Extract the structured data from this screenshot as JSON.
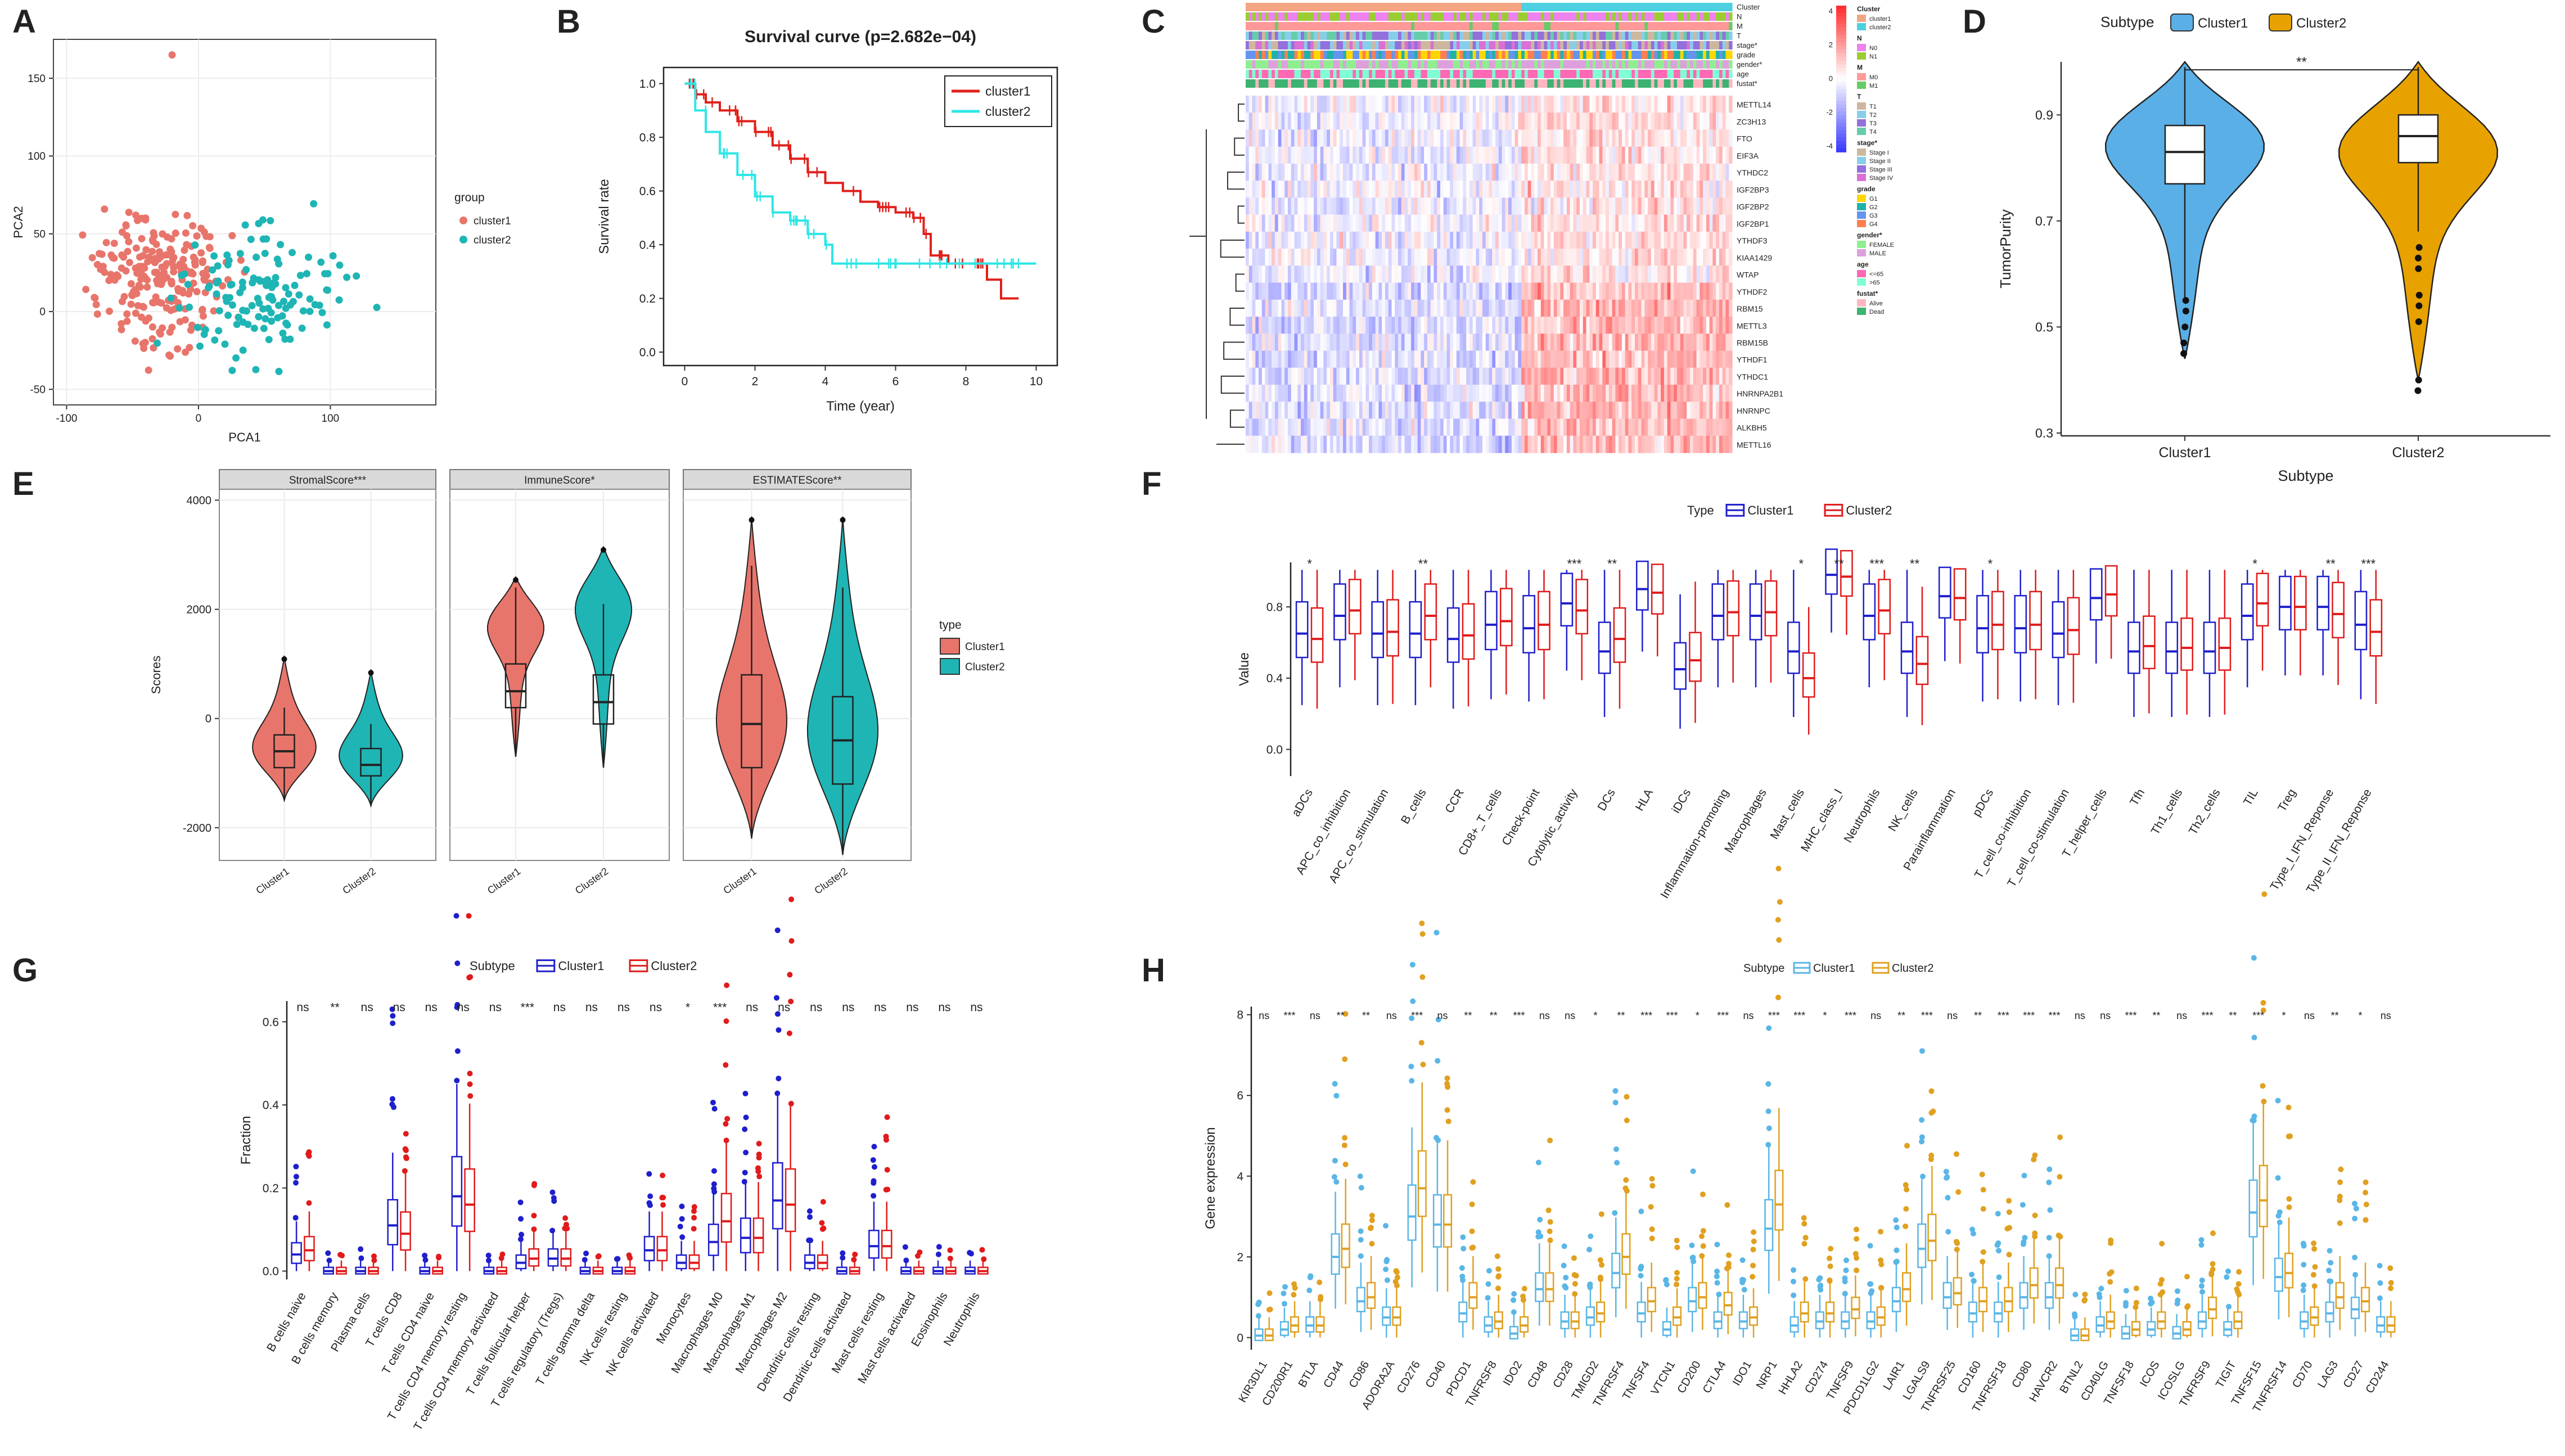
{
  "panel_letters": [
    "A",
    "B",
    "C",
    "D",
    "E",
    "F",
    "G",
    "H"
  ],
  "colors": {
    "c1_red": "#E8756B",
    "c2_teal": "#1FB5B5",
    "surv1": "#E0201B",
    "surv2": "#2EE6E6",
    "d_c1": "#5AAFE6",
    "d_c2": "#E8A200",
    "blue": "#1F1FCC",
    "red": "#E01B1B",
    "h_c1": "#5AB6E6",
    "h_c2": "#E0A020",
    "hm_low": "#3333FF",
    "hm_high": "#FF2222"
  },
  "chart_data": [
    {
      "panel": "A",
      "type": "scatter",
      "xlabel": "PCA1",
      "ylabel": "PCA2",
      "xlim": [
        -110,
        180
      ],
      "ylim": [
        -60,
        175
      ],
      "xticks": [
        -100,
        0,
        100
      ],
      "yticks": [
        -50,
        0,
        50,
        100,
        150
      ],
      "legend_title": "group",
      "legend": [
        "cluster1",
        "cluster2"
      ],
      "cluster1_center": [
        -30,
        20
      ],
      "cluster2_center": [
        50,
        10
      ],
      "n_points": [
        230,
        130
      ]
    },
    {
      "panel": "B",
      "type": "line",
      "title": "Survival curve (p=2.682e−04)",
      "xlabel": "Time (year)",
      "ylabel": "Survival rate",
      "xlim": [
        0,
        10
      ],
      "ylim": [
        0,
        1
      ],
      "xticks": [
        0,
        2,
        4,
        6,
        8,
        10
      ],
      "yticks": [
        0.0,
        0.2,
        0.4,
        0.6,
        0.8,
        1.0
      ],
      "legend": [
        "cluster1",
        "cluster2"
      ],
      "series": [
        {
          "name": "cluster1",
          "x": [
            0,
            0.3,
            0.6,
            1,
            1.5,
            2,
            2.5,
            3,
            3.5,
            4,
            4.5,
            5,
            5.5,
            6,
            6.5,
            6.8,
            7,
            7.5,
            8,
            8.6,
            9,
            9.5
          ],
          "y": [
            1,
            0.96,
            0.93,
            0.9,
            0.86,
            0.82,
            0.77,
            0.72,
            0.67,
            0.63,
            0.6,
            0.56,
            0.54,
            0.52,
            0.5,
            0.44,
            0.36,
            0.33,
            0.33,
            0.27,
            0.2,
            0.2
          ]
        },
        {
          "name": "cluster2",
          "x": [
            0,
            0.3,
            0.6,
            1,
            1.5,
            2,
            2.5,
            3,
            3.5,
            4,
            4.2,
            5,
            6,
            7,
            8,
            9,
            10
          ],
          "y": [
            1,
            0.9,
            0.82,
            0.74,
            0.66,
            0.58,
            0.52,
            0.49,
            0.44,
            0.4,
            0.33,
            0.33,
            0.33,
            0.33,
            0.33,
            0.33,
            0.33
          ]
        }
      ]
    },
    {
      "panel": "C",
      "type": "heatmap",
      "rows": [
        "METTL14",
        "ZC3H13",
        "FTO",
        "EIF3A",
        "YTHDC2",
        "IGF2BP3",
        "IGF2BP2",
        "IGF2BP1",
        "YTHDF3",
        "KIAA1429",
        "WTAP",
        "YTHDF2",
        "RBM15",
        "METTL3",
        "RBM15B",
        "YTHDF1",
        "YTHDC1",
        "HNRNPA2B1",
        "HNRNPC",
        "ALKBH5",
        "METTL16"
      ],
      "annotations": [
        "Cluster",
        "N",
        "M",
        "T",
        "stage*",
        "grade",
        "gender*",
        "age",
        "fustat*"
      ],
      "scale": [
        -4,
        4
      ],
      "legend": [
        {
          "title": "Cluster",
          "items": [
            "cluster1",
            "cluster2"
          ]
        },
        {
          "title": "N",
          "items": [
            "N0",
            "N1"
          ]
        },
        {
          "title": "M",
          "items": [
            "M0",
            "M1"
          ]
        },
        {
          "title": "T",
          "items": [
            "T1",
            "T2",
            "T3",
            "T4"
          ]
        },
        {
          "title": "stage*",
          "items": [
            "Stage I",
            "Stage II",
            "Stage III",
            "Stage IV"
          ]
        },
        {
          "title": "grade",
          "items": [
            "G1",
            "G2",
            "G3",
            "G4"
          ]
        },
        {
          "title": "gender*",
          "items": [
            "FEMALE",
            "MALE"
          ]
        },
        {
          "title": "age",
          "items": [
            "<=65",
            ">65"
          ]
        },
        {
          "title": "fustat*",
          "items": [
            "Alive",
            "Dead"
          ]
        }
      ]
    },
    {
      "panel": "D",
      "type": "violin",
      "legend_title": "Subtype",
      "legend": [
        "Cluster1",
        "Cluster2"
      ],
      "categories": [
        "Cluster1",
        "Cluster2"
      ],
      "xlabel": "Subtype",
      "ylabel": "TumorPurity",
      "ylim": [
        0.3,
        1.0
      ],
      "yticks": [
        0.3,
        0.5,
        0.7,
        0.9
      ],
      "significance": "**",
      "boxes": [
        {
          "q1": 0.77,
          "med": 0.83,
          "q3": 0.88,
          "lo": 0.55,
          "hi": 0.99
        },
        {
          "q1": 0.81,
          "med": 0.86,
          "q3": 0.9,
          "lo": 0.68,
          "hi": 0.99
        }
      ]
    },
    {
      "panel": "E",
      "type": "violin",
      "facets": [
        "StromalScore***",
        "ImmuneScore*",
        "ESTIMATEScore**"
      ],
      "categories": [
        "Cluster1",
        "Cluster2"
      ],
      "ylabel": "Scores",
      "ylim": [
        -2400,
        4200
      ],
      "yticks": [
        -2000,
        0,
        2000,
        4000
      ],
      "legend_title": "type",
      "legend": [
        "Cluster1",
        "Cluster2"
      ],
      "boxes": [
        [
          {
            "q1": -900,
            "med": -600,
            "q3": -300,
            "lo": -1500,
            "hi": 200
          },
          {
            "q1": -1050,
            "med": -850,
            "q3": -550,
            "lo": -1600,
            "hi": -100
          }
        ],
        [
          {
            "q1": 200,
            "med": 500,
            "q3": 1000,
            "lo": -700,
            "hi": 2400
          },
          {
            "q1": -100,
            "med": 300,
            "q3": 800,
            "lo": -900,
            "hi": 2100
          }
        ],
        [
          {
            "q1": -900,
            "med": -100,
            "q3": 800,
            "lo": -2100,
            "hi": 2800
          },
          {
            "q1": -1200,
            "med": -400,
            "q3": 400,
            "lo": -2400,
            "hi": 2400
          }
        ]
      ]
    },
    {
      "panel": "F",
      "type": "boxplot",
      "legend_title": "Type",
      "legend": [
        "Cluster1",
        "Cluster2"
      ],
      "ylabel": "Value",
      "ylim": [
        -0.15,
        1.05
      ],
      "yticks": [
        0.0,
        0.4,
        0.8
      ],
      "categories": [
        "aDCs",
        "APC_co_inhibition",
        "APC_co_stimulation",
        "B_cells",
        "CCR",
        "CD8+_T_cells",
        "Check-point",
        "Cytolytic_activity",
        "DCs",
        "HLA",
        "iDCs",
        "Inflammation-promoting",
        "Macrophages",
        "Mast_cells",
        "MHC_class_I",
        "Neutrophils",
        "NK_cells",
        "Parainflammation",
        "pDCs",
        "T_cell_co-inhibition",
        "T_cell_co-stimulation",
        "T_helper_cells",
        "Tfh",
        "Th1_cells",
        "Th2_cells",
        "TIL",
        "Treg",
        "Type_I_IFN_Reponse",
        "Type_II_IFN_Reponse"
      ],
      "significance": [
        "*",
        "",
        "",
        "**",
        "",
        "",
        "",
        "***",
        "**",
        "",
        "",
        "",
        "",
        "*",
        "**",
        "***",
        "**",
        "",
        "*",
        "",
        "",
        "",
        "",
        "",
        "",
        "*",
        "",
        "**",
        "***"
      ],
      "medians_c1": [
        0.65,
        0.75,
        0.65,
        0.65,
        0.62,
        0.7,
        0.68,
        0.82,
        0.55,
        0.9,
        0.45,
        0.75,
        0.75,
        0.55,
        0.98,
        0.75,
        0.55,
        0.86,
        0.68,
        0.68,
        0.65,
        0.85,
        0.55,
        0.55,
        0.55,
        0.75,
        0.8,
        0.8,
        0.7
      ],
      "medians_c2": [
        0.62,
        0.78,
        0.66,
        0.75,
        0.64,
        0.72,
        0.7,
        0.78,
        0.62,
        0.88,
        0.5,
        0.77,
        0.77,
        0.4,
        0.97,
        0.78,
        0.48,
        0.85,
        0.7,
        0.7,
        0.67,
        0.87,
        0.58,
        0.57,
        0.57,
        0.82,
        0.8,
        0.76,
        0.66
      ]
    },
    {
      "panel": "G",
      "type": "boxplot",
      "legend_title": "Subtype",
      "legend": [
        "Cluster1",
        "Cluster2"
      ],
      "ylabel": "Fraction",
      "ylim": [
        -0.02,
        0.65
      ],
      "yticks": [
        0.0,
        0.2,
        0.4,
        0.6
      ],
      "categories": [
        "B cells naive",
        "B cells memory",
        "Plasma cells",
        "T cells CD8",
        "T cells CD4 naive",
        "T cells CD4 memory resting",
        "T cells CD4 memory activated",
        "T cells follicular helper",
        "T cells regulatory (Tregs)",
        "T cells gamma delta",
        "NK cells resting",
        "NK cells activated",
        "Monocytes",
        "Macrophages M0",
        "Macrophages M1",
        "Macrophages M2",
        "Dendritic cells resting",
        "Dendritic cells activated",
        "Mast cells resting",
        "Mast cells activated",
        "Eosinophils",
        "Neutrophils"
      ],
      "significance": [
        "ns",
        "**",
        "ns",
        "ns",
        "ns",
        "ns",
        "ns",
        "***",
        "ns",
        "ns",
        "ns",
        "ns",
        "*",
        "***",
        "ns",
        "ns",
        "ns",
        "ns",
        "ns",
        "ns",
        "ns",
        "ns"
      ],
      "medians_c1": [
        0.04,
        0.0,
        0.0,
        0.11,
        0.0,
        0.18,
        0.0,
        0.02,
        0.03,
        0.0,
        0.0,
        0.05,
        0.02,
        0.07,
        0.08,
        0.17,
        0.02,
        0.0,
        0.06,
        0.0,
        0.0,
        0.0
      ],
      "medians_c2": [
        0.05,
        0.0,
        0.0,
        0.09,
        0.0,
        0.16,
        0.0,
        0.03,
        0.03,
        0.0,
        0.0,
        0.05,
        0.02,
        0.12,
        0.08,
        0.16,
        0.02,
        0.0,
        0.06,
        0.0,
        0.0,
        0.0
      ]
    },
    {
      "panel": "H",
      "type": "boxplot",
      "legend_title": "Subtype",
      "legend": [
        "Cluster1",
        "Cluster2"
      ],
      "ylabel": "Gene expression",
      "ylim": [
        -0.3,
        8.2
      ],
      "yticks": [
        0,
        2,
        4,
        6,
        8
      ],
      "categories": [
        "KIR3DL1",
        "CD200R1",
        "BTLA",
        "CD44",
        "CD86",
        "ADORA2A",
        "CD276",
        "CD40",
        "PDCD1",
        "TNFRSF8",
        "IDO2",
        "CD48",
        "CD28",
        "TMIGD2",
        "TNFRSF4",
        "TNFSF4",
        "VTCN1",
        "CD200",
        "CTLA4",
        "IDO1",
        "NRP1",
        "HHLA2",
        "CD274",
        "TNFSF9",
        "PDCD1LG2",
        "LAIR1",
        "LGALS9",
        "TNFRSF25",
        "CD160",
        "TNFRSF18",
        "CD80",
        "HAVCR2",
        "BTNL2",
        "CD40LG",
        "TNFSF18",
        "ICOS",
        "ICOSLG",
        "TNFRSF9",
        "TIGIT",
        "TNFSF15",
        "TNFRSF14",
        "CD70",
        "LAG3",
        "CD27",
        "CD244"
      ],
      "significance": [
        "ns",
        "***",
        "ns",
        "**",
        "**",
        "ns",
        "***",
        "ns",
        "**",
        "**",
        "***",
        "ns",
        "ns",
        "*",
        "**",
        "***",
        "***",
        "*",
        "***",
        "ns",
        "***",
        "***",
        "*",
        "***",
        "ns",
        "**",
        "***",
        "ns",
        "**",
        "***",
        "***",
        "***",
        "ns",
        "ns",
        "***",
        "**",
        "ns",
        "***",
        "**",
        "***",
        "*",
        "ns",
        "**",
        "*",
        "ns"
      ],
      "medians_c1": [
        0.05,
        0.2,
        0.3,
        2.0,
        0.9,
        0.5,
        3.0,
        2.8,
        0.6,
        0.3,
        0.1,
        1.2,
        0.4,
        0.5,
        1.6,
        0.6,
        0.2,
        0.9,
        0.4,
        0.4,
        2.7,
        0.3,
        0.4,
        0.4,
        0.4,
        0.9,
        2.2,
        1.0,
        0.6,
        0.6,
        1.0,
        1.0,
        0.05,
        0.3,
        0.1,
        0.2,
        0.1,
        0.4,
        0.2,
        3.1,
        1.5,
        0.4,
        0.6,
        0.7,
        0.3
      ],
      "medians_c2": [
        0.05,
        0.3,
        0.3,
        2.2,
        1.0,
        0.5,
        3.7,
        2.8,
        1.0,
        0.4,
        0.3,
        1.2,
        0.4,
        0.6,
        2.0,
        0.9,
        0.5,
        1.0,
        0.8,
        0.5,
        3.3,
        0.6,
        0.6,
        0.7,
        0.5,
        1.2,
        2.4,
        1.1,
        0.9,
        0.9,
        1.3,
        1.3,
        0.05,
        0.4,
        0.2,
        0.4,
        0.2,
        0.7,
        0.4,
        3.4,
        1.6,
        0.5,
        1.0,
        0.9,
        0.3
      ]
    }
  ]
}
